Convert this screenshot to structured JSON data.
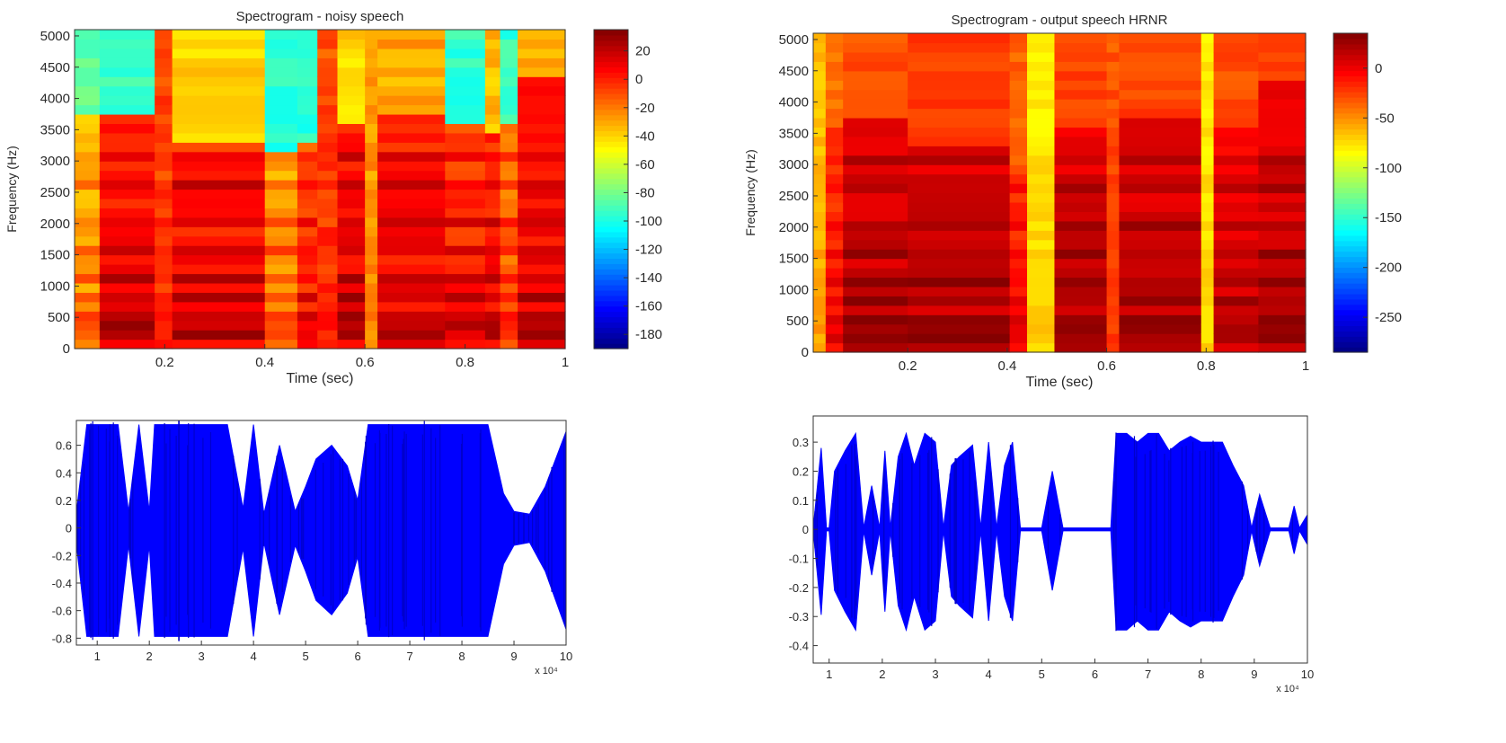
{
  "chart_data": [
    {
      "type": "heatmap",
      "title": "Spectrogram - noisy speech",
      "xlabel": "Time (sec)",
      "ylabel": "Frequency (Hz)",
      "xlim": [
        0.02,
        1.0
      ],
      "ylim": [
        0,
        5100
      ],
      "xticks": [
        "0.2",
        "0.4",
        "0.6",
        "0.8",
        "1"
      ],
      "yticks": [
        "0",
        "500",
        "1000",
        "1500",
        "2000",
        "2500",
        "3000",
        "3500",
        "4000",
        "4500",
        "5000"
      ],
      "colorbar": {
        "range": [
          -190,
          35
        ],
        "ticks": [
          "20",
          "0",
          "-20",
          "-40",
          "-60",
          "-80",
          "-100",
          "-120",
          "-140",
          "-160",
          "-180"
        ]
      },
      "colormap": "jet",
      "segments": [
        {
          "t": [
            0.02,
            0.07
          ],
          "cutoff_hz": 3650,
          "low_db": -25,
          "high_db": -85,
          "burst": false
        },
        {
          "t": [
            0.07,
            0.18
          ],
          "cutoff_hz": 3700,
          "low_db": 10,
          "high_db": -90,
          "burst": false
        },
        {
          "t": [
            0.18,
            0.215
          ],
          "cutoff_hz": 5100,
          "low_db": 0,
          "high_db": -35,
          "burst": true
        },
        {
          "t": [
            0.215,
            0.4
          ],
          "cutoff_hz": 3300,
          "low_db": 10,
          "high_db": -40,
          "burst": false
        },
        {
          "t": [
            0.4,
            0.465
          ],
          "cutoff_hz": 3100,
          "low_db": -20,
          "high_db": -95,
          "burst": false
        },
        {
          "t": [
            0.465,
            0.505
          ],
          "cutoff_hz": 3300,
          "low_db": 0,
          "high_db": -95,
          "burst": false
        },
        {
          "t": [
            0.505,
            0.545
          ],
          "cutoff_hz": 5100,
          "low_db": 0,
          "high_db": -20,
          "burst": true
        },
        {
          "t": [
            0.545,
            0.6
          ],
          "cutoff_hz": 3600,
          "low_db": 12,
          "high_db": -40,
          "burst": false
        },
        {
          "t": [
            0.6,
            0.625
          ],
          "cutoff_hz": 5100,
          "low_db": -20,
          "high_db": -30,
          "burst": true
        },
        {
          "t": [
            0.625,
            0.76
          ],
          "cutoff_hz": 3700,
          "low_db": 10,
          "high_db": -30,
          "burst": false
        },
        {
          "t": [
            0.76,
            0.84
          ],
          "cutoff_hz": 3550,
          "low_db": 5,
          "high_db": -95,
          "burst": false
        },
        {
          "t": [
            0.84,
            0.87
          ],
          "cutoff_hz": 3400,
          "low_db": 10,
          "high_db": -35,
          "burst": false
        },
        {
          "t": [
            0.87,
            0.905
          ],
          "cutoff_hz": 3500,
          "low_db": -10,
          "high_db": -95,
          "burst": false
        },
        {
          "t": [
            0.905,
            1.0
          ],
          "cutoff_hz": 4300,
          "low_db": 12,
          "high_db": -30,
          "burst": false
        }
      ],
      "formants_hz": [
        120,
        350,
        500,
        720,
        1100,
        1500,
        2000,
        2500,
        2950
      ]
    },
    {
      "type": "heatmap",
      "title": "Spectrogram - output speech HRNR",
      "xlabel": "Time (sec)",
      "ylabel": "Frequency (Hz)",
      "xlim": [
        0.01,
        1.0
      ],
      "ylim": [
        0,
        5100
      ],
      "xticks": [
        "0.2",
        "0.4",
        "0.6",
        "0.8",
        "1"
      ],
      "yticks": [
        "0",
        "500",
        "1000",
        "1500",
        "2000",
        "2500",
        "3000",
        "3500",
        "4000",
        "4500",
        "5000"
      ],
      "colorbar": {
        "range": [
          -285,
          35
        ],
        "ticks": [
          "0",
          "-50",
          "-100",
          "-150",
          "-200",
          "-250"
        ]
      },
      "colormap": "jet",
      "segments": [
        {
          "t": [
            0.01,
            0.035
          ],
          "cutoff_hz": 5100,
          "low_db": -55,
          "high_db": -75,
          "burst": true
        },
        {
          "t": [
            0.035,
            0.07
          ],
          "cutoff_hz": 3600,
          "low_db": -10,
          "high_db": -40,
          "burst": false
        },
        {
          "t": [
            0.07,
            0.2
          ],
          "cutoff_hz": 3700,
          "low_db": 15,
          "high_db": -30,
          "burst": false
        },
        {
          "t": [
            0.2,
            0.405
          ],
          "cutoff_hz": 3300,
          "low_db": 15,
          "high_db": -25,
          "burst": false
        },
        {
          "t": [
            0.405,
            0.44
          ],
          "cutoff_hz": 3000,
          "low_db": -10,
          "high_db": -35,
          "burst": false
        },
        {
          "t": [
            0.44,
            0.495
          ],
          "cutoff_hz": 5100,
          "low_db": -70,
          "high_db": -80,
          "burst": true
        },
        {
          "t": [
            0.495,
            0.6
          ],
          "cutoff_hz": 3600,
          "low_db": 15,
          "high_db": -25,
          "burst": false
        },
        {
          "t": [
            0.6,
            0.625
          ],
          "cutoff_hz": 5100,
          "low_db": -20,
          "high_db": -30,
          "burst": true
        },
        {
          "t": [
            0.625,
            0.79
          ],
          "cutoff_hz": 3700,
          "low_db": 15,
          "high_db": -25,
          "burst": false
        },
        {
          "t": [
            0.79,
            0.815
          ],
          "cutoff_hz": 5100,
          "low_db": -70,
          "high_db": -80,
          "burst": true
        },
        {
          "t": [
            0.815,
            0.905
          ],
          "cutoff_hz": 3500,
          "low_db": 10,
          "high_db": -30,
          "burst": false
        },
        {
          "t": [
            0.905,
            1.0
          ],
          "cutoff_hz": 4300,
          "low_db": 15,
          "high_db": -25,
          "burst": false
        }
      ],
      "formants_hz": [
        120,
        350,
        500,
        720,
        1100,
        1500,
        2000,
        2500,
        2950
      ]
    },
    {
      "type": "area",
      "xlim": [
        0.6,
        10
      ],
      "ylim": [
        -0.85,
        0.78
      ],
      "xticks": [
        "1",
        "2",
        "3",
        "4",
        "5",
        "6",
        "7",
        "8",
        "9",
        "10"
      ],
      "yticks": [
        "0.6",
        "0.4",
        "0.2",
        "0",
        "-0.2",
        "-0.4",
        "-0.6",
        "-0.8"
      ],
      "x_multiplier": "x 10⁴",
      "color": "#0000ff",
      "series": [
        {
          "x": [
            0.6,
            0.8,
            0.9,
            1.0,
            1.4,
            1.6,
            1.8,
            2.0,
            2.1,
            2.3,
            2.6,
            3.0,
            3.3,
            3.5,
            3.8,
            4.0,
            4.2,
            4.5,
            4.8,
            5.0,
            5.2,
            5.5,
            5.8,
            6.0,
            6.2,
            6.5,
            6.8,
            7.0,
            7.5,
            8.0,
            8.5,
            8.8,
            9.0,
            9.3,
            9.6,
            10.0
          ],
          "y": [
            0.11,
            0.75,
            0.75,
            0.75,
            0.75,
            0.12,
            0.75,
            0.12,
            0.75,
            0.75,
            0.75,
            0.75,
            0.75,
            0.75,
            0.14,
            0.75,
            0.1,
            0.6,
            0.12,
            0.3,
            0.5,
            0.6,
            0.45,
            0.2,
            0.75,
            0.75,
            0.75,
            0.75,
            0.75,
            0.75,
            0.75,
            0.25,
            0.12,
            0.1,
            0.3,
            0.7
          ]
        }
      ]
    },
    {
      "type": "area",
      "xlim": [
        0.7,
        10
      ],
      "ylim": [
        -0.46,
        0.39
      ],
      "xticks": [
        "1",
        "2",
        "3",
        "4",
        "5",
        "6",
        "7",
        "8",
        "9",
        "10"
      ],
      "yticks": [
        "0.3",
        "0.2",
        "0.1",
        "0",
        "-0.1",
        "-0.2",
        "-0.3",
        "-0.4"
      ],
      "x_multiplier": "x 10⁴",
      "color": "#0000ff",
      "series": [
        {
          "x": [
            0.7,
            0.85,
            0.95,
            1.0,
            1.1,
            1.3,
            1.5,
            1.65,
            1.8,
            1.95,
            2.05,
            2.15,
            2.3,
            2.45,
            2.6,
            2.8,
            3.0,
            3.15,
            3.3,
            3.45,
            3.7,
            3.85,
            4.0,
            4.15,
            4.3,
            4.45,
            4.6,
            4.8,
            5.0,
            5.2,
            5.4,
            5.6,
            5.8,
            5.95,
            6.1,
            6.3,
            6.4,
            6.6,
            6.8,
            7.0,
            7.2,
            7.4,
            7.6,
            7.8,
            8.0,
            8.2,
            8.4,
            8.6,
            8.8,
            8.95,
            9.1,
            9.3,
            9.5,
            9.65,
            9.75,
            9.85,
            10.0
          ],
          "y": [
            0.005,
            0.28,
            0.005,
            0.005,
            0.2,
            0.27,
            0.33,
            0.005,
            0.15,
            0.005,
            0.27,
            0.005,
            0.25,
            0.33,
            0.22,
            0.33,
            0.3,
            0.005,
            0.22,
            0.25,
            0.29,
            0.005,
            0.3,
            0.005,
            0.22,
            0.3,
            0.005,
            0.005,
            0.005,
            0.2,
            0.005,
            0.005,
            0.005,
            0.005,
            0.005,
            0.005,
            0.33,
            0.33,
            0.3,
            0.33,
            0.33,
            0.27,
            0.3,
            0.32,
            0.3,
            0.3,
            0.3,
            0.22,
            0.15,
            0.005,
            0.12,
            0.005,
            0.005,
            0.005,
            0.08,
            0.005,
            0.05
          ]
        }
      ]
    }
  ]
}
